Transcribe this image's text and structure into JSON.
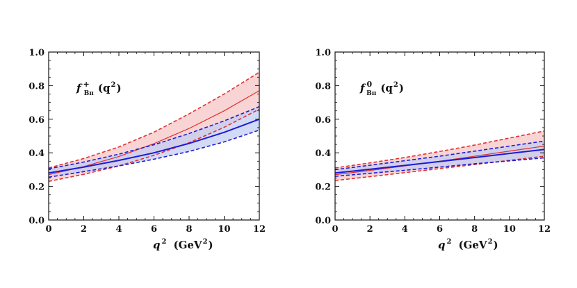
{
  "chart_data": [
    {
      "type": "line",
      "panel": "left",
      "title_main": "f",
      "title_sup": "+",
      "title_sub": "Bπ",
      "title_arg": "(q",
      "title_arg_sup": "2",
      "title_arg_close": ")",
      "xlabel_var": "q",
      "xlabel_sup": "2",
      "xlabel_unit": "(GeV",
      "xlabel_unit_sup": "2",
      "xlabel_unit_close": ")",
      "xlim": [
        0,
        12
      ],
      "ylim": [
        0.0,
        1.0
      ],
      "xticks": [
        "0",
        "2",
        "4",
        "6",
        "8",
        "10",
        "12"
      ],
      "yticks": [
        "0.0",
        "0.2",
        "0.4",
        "0.6",
        "0.8",
        "1.0"
      ],
      "x": [
        0,
        2,
        4,
        6,
        8,
        10,
        12
      ],
      "series": [
        {
          "name": "red-central",
          "color": "#e03030",
          "style": "solid",
          "values": [
            0.27,
            0.318,
            0.378,
            0.455,
            0.545,
            0.65,
            0.77
          ]
        },
        {
          "name": "red-upper",
          "color": "#e03030",
          "style": "dashed",
          "values": [
            0.31,
            0.366,
            0.435,
            0.523,
            0.632,
            0.75,
            0.88
          ]
        },
        {
          "name": "red-lower",
          "color": "#e03030",
          "style": "dashed",
          "values": [
            0.23,
            0.272,
            0.322,
            0.385,
            0.46,
            0.552,
            0.66
          ]
        },
        {
          "name": "blue-central",
          "color": "#1c1cd6",
          "style": "solid",
          "values": [
            0.28,
            0.315,
            0.355,
            0.4,
            0.456,
            0.522,
            0.6
          ]
        },
        {
          "name": "blue-upper",
          "color": "#1c1cd6",
          "style": "dashed",
          "values": [
            0.305,
            0.345,
            0.392,
            0.448,
            0.515,
            0.59,
            0.675
          ]
        },
        {
          "name": "blue-lower",
          "color": "#1c1cd6",
          "style": "dashed",
          "values": [
            0.255,
            0.288,
            0.322,
            0.362,
            0.408,
            0.465,
            0.535
          ]
        }
      ],
      "bands": [
        {
          "name": "red-band",
          "color": "#f7c6c6",
          "upper": "red-upper",
          "lower": "red-lower"
        },
        {
          "name": "blue-band",
          "color": "#c3cdf2",
          "upper": "blue-upper",
          "lower": "blue-lower"
        }
      ]
    },
    {
      "type": "line",
      "panel": "right",
      "title_main": "f",
      "title_sup": "0",
      "title_sub": "Bπ",
      "title_arg": "(q",
      "title_arg_sup": "2",
      "title_arg_close": ")",
      "xlabel_var": "q",
      "xlabel_sup": "2",
      "xlabel_unit": "(GeV",
      "xlabel_unit_sup": "2",
      "xlabel_unit_close": ")",
      "xlim": [
        0,
        12
      ],
      "ylim": [
        0.0,
        1.0
      ],
      "xticks": [
        "0",
        "2",
        "4",
        "6",
        "8",
        "10",
        "12"
      ],
      "yticks": [
        "0.0",
        "0.2",
        "0.4",
        "0.6",
        "0.8",
        "1.0"
      ],
      "x": [
        0,
        2,
        4,
        6,
        8,
        10,
        12
      ],
      "series": [
        {
          "name": "red-central",
          "color": "#e03030",
          "style": "solid",
          "values": [
            0.27,
            0.295,
            0.322,
            0.35,
            0.38,
            0.41,
            0.44
          ]
        },
        {
          "name": "red-upper",
          "color": "#e03030",
          "style": "dashed",
          "values": [
            0.31,
            0.34,
            0.372,
            0.408,
            0.446,
            0.488,
            0.53
          ]
        },
        {
          "name": "red-lower",
          "color": "#e03030",
          "style": "dashed",
          "values": [
            0.235,
            0.258,
            0.282,
            0.306,
            0.33,
            0.355,
            0.38
          ]
        },
        {
          "name": "blue-central",
          "color": "#1c1cd6",
          "style": "solid",
          "values": [
            0.28,
            0.302,
            0.325,
            0.348,
            0.372,
            0.396,
            0.42
          ]
        },
        {
          "name": "blue-upper",
          "color": "#1c1cd6",
          "style": "dashed",
          "values": [
            0.3,
            0.326,
            0.353,
            0.38,
            0.41,
            0.44,
            0.47
          ]
        },
        {
          "name": "blue-lower",
          "color": "#1c1cd6",
          "style": "dashed",
          "values": [
            0.26,
            0.278,
            0.296,
            0.315,
            0.335,
            0.352,
            0.37
          ]
        }
      ],
      "bands": [
        {
          "name": "red-band",
          "color": "#f7c6c6",
          "upper": "red-upper",
          "lower": "red-lower"
        },
        {
          "name": "blue-band",
          "color": "#c3cdf2",
          "upper": "blue-upper",
          "lower": "blue-lower"
        }
      ]
    }
  ]
}
